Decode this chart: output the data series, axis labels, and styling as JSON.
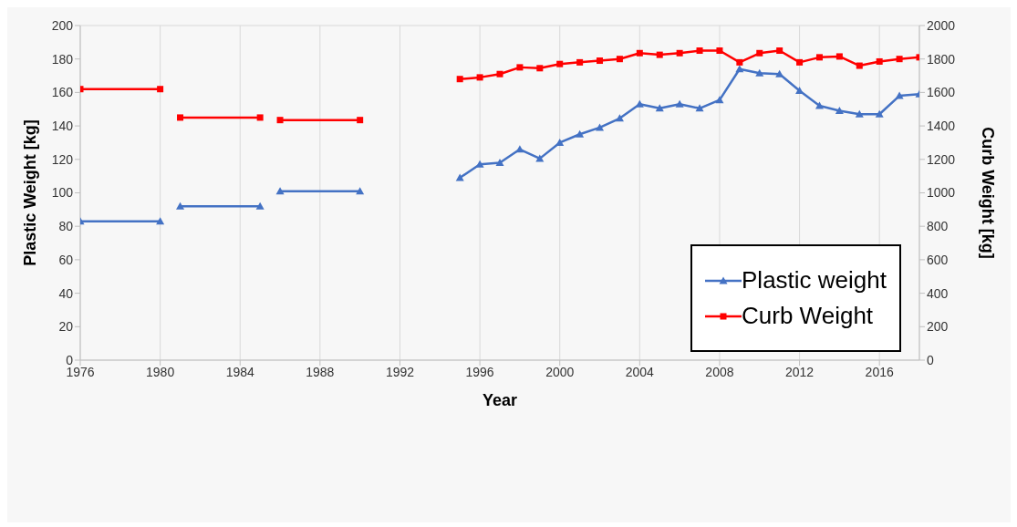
{
  "chart_data": {
    "type": "line",
    "xlabel": "Year",
    "ylabel": "Plastic Weight [kg]",
    "y2label": "Curb Weight [kg]",
    "xlim": [
      1976,
      2018
    ],
    "xticks": [
      1976,
      1980,
      1984,
      1988,
      1992,
      1996,
      2000,
      2004,
      2008,
      2012,
      2016
    ],
    "ylim": [
      0,
      200
    ],
    "yticks": [
      0,
      20,
      40,
      60,
      80,
      100,
      120,
      140,
      160,
      180,
      200
    ],
    "y2lim": [
      0,
      2000
    ],
    "y2ticks": [
      0,
      200,
      400,
      600,
      800,
      1000,
      1200,
      1400,
      1600,
      1800,
      2000
    ],
    "grid": true,
    "legend": "right",
    "series": [
      {
        "name": "Plastic weight",
        "color": "#4472c4",
        "marker": "triangle",
        "x": [
          1976,
          1980
        ],
        "values": [
          83,
          83
        ]
      },
      {
        "color": "#4472c4",
        "marker": "triangle",
        "x": [
          1981,
          1985
        ],
        "values": [
          92,
          92
        ]
      },
      {
        "color": "#4472c4",
        "marker": "triangle",
        "x": [
          1986,
          1990
        ],
        "values": [
          101,
          101
        ]
      },
      {
        "color": "#4472c4",
        "marker": "triangle",
        "x": [
          1995,
          1996,
          1997,
          1998,
          1999,
          2000,
          2001,
          2002,
          2003,
          2004,
          2005,
          2006,
          2007,
          2008,
          2009,
          2010,
          2011,
          2012,
          2013,
          2014,
          2015,
          2016,
          2017,
          2018
        ],
        "values": [
          109,
          117,
          118,
          126,
          120.5,
          130,
          135,
          139,
          144.5,
          153,
          150.5,
          153,
          150.5,
          155.5,
          174,
          171.5,
          171,
          161,
          152,
          149,
          147,
          147,
          158,
          159
        ]
      },
      {
        "name": "Curb Weight",
        "color": "#ff0000",
        "marker": "square",
        "axis": "y2",
        "x": [
          1976,
          1980
        ],
        "values": [
          1620,
          1620
        ]
      },
      {
        "color": "#ff0000",
        "marker": "square",
        "axis": "y2",
        "x": [
          1981,
          1985
        ],
        "values": [
          1450,
          1450
        ]
      },
      {
        "color": "#ff0000",
        "marker": "square",
        "axis": "y2",
        "x": [
          1986,
          1990
        ],
        "values": [
          1435,
          1435
        ]
      },
      {
        "color": "#ff0000",
        "marker": "square",
        "axis": "y2",
        "x": [
          1995,
          1996,
          1997,
          1998,
          1999,
          2000,
          2001,
          2002,
          2003,
          2004,
          2005,
          2006,
          2007,
          2008,
          2009,
          2010,
          2011,
          2012,
          2013,
          2014,
          2015,
          2016,
          2017,
          2018
        ],
        "values": [
          1680,
          1690,
          1710,
          1750,
          1745,
          1770,
          1780,
          1790,
          1800,
          1835,
          1825,
          1835,
          1850,
          1850,
          1780,
          1835,
          1850,
          1780,
          1810,
          1815,
          1760,
          1785,
          1800,
          1810
        ]
      }
    ]
  }
}
